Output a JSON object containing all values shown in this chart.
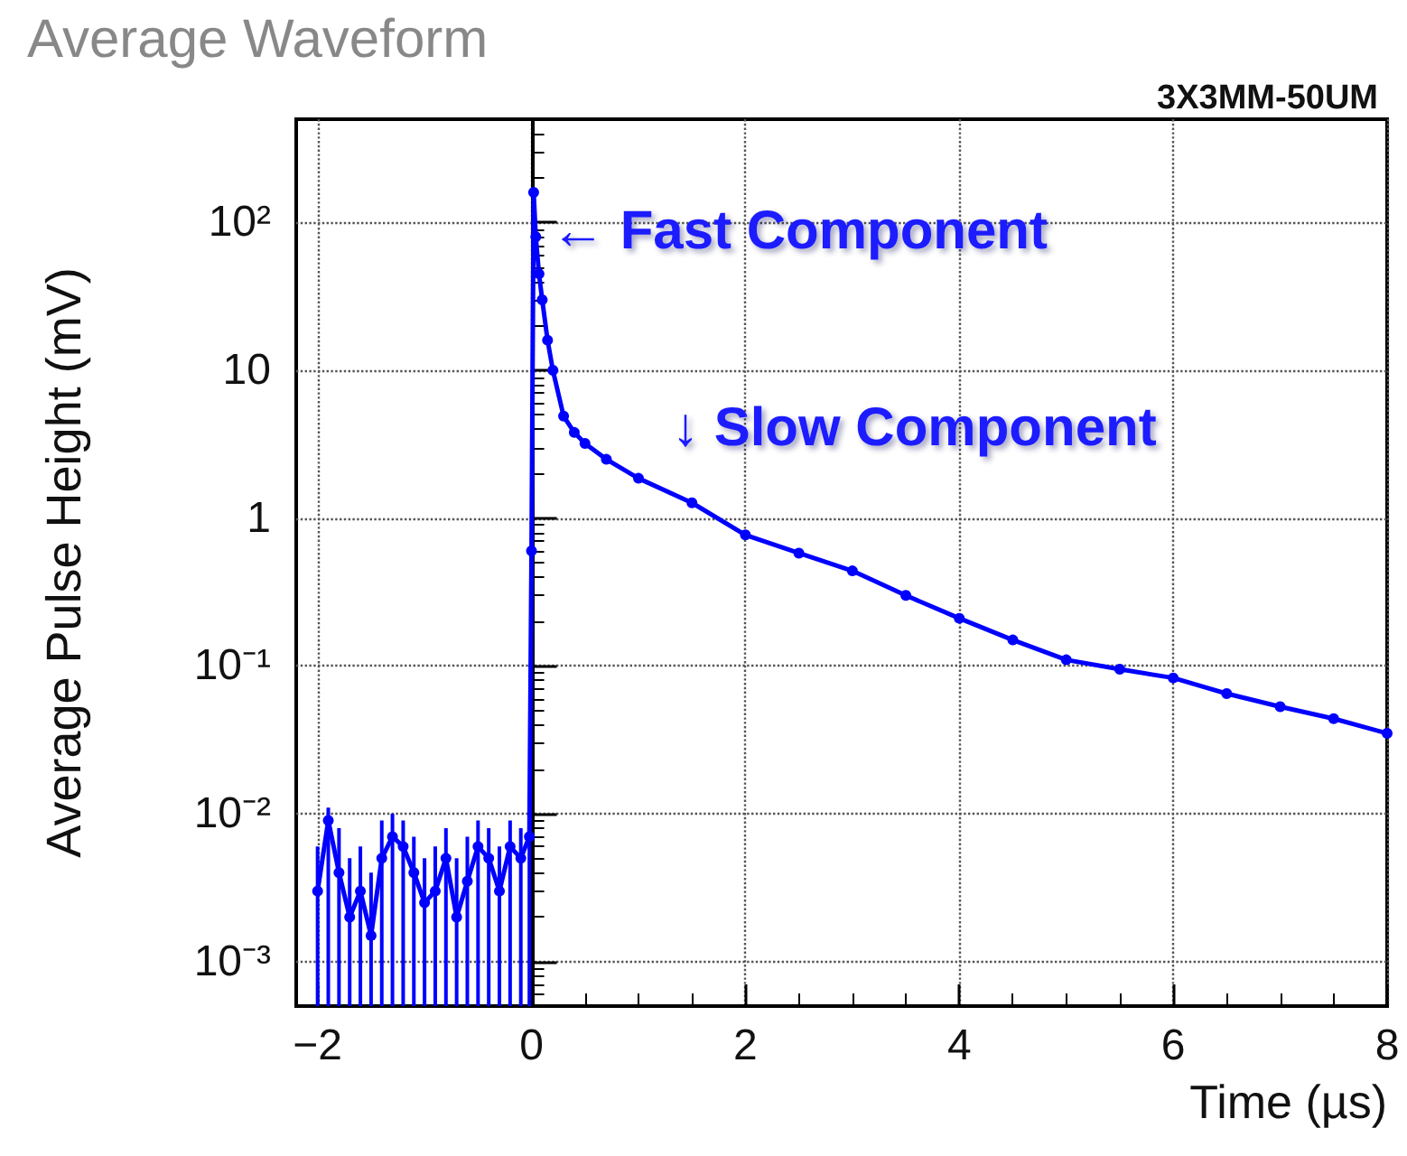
{
  "chart_data": {
    "type": "line",
    "title": "Average Waveform",
    "subtitle": "3X3MM-50UM",
    "xlabel": "Time (µs)",
    "ylabel": "Average Pulse Height (mV)",
    "x": [
      -2.0,
      -1.9,
      -1.8,
      -1.7,
      -1.6,
      -1.5,
      -1.4,
      -1.3,
      -1.2,
      -1.1,
      -1.0,
      -0.9,
      -0.8,
      -0.7,
      -0.6,
      -0.5,
      -0.4,
      -0.3,
      -0.2,
      -0.1,
      -0.02,
      0.0,
      0.02,
      0.04,
      0.07,
      0.1,
      0.15,
      0.2,
      0.3,
      0.4,
      0.5,
      0.7,
      1.0,
      1.5,
      2.0,
      2.5,
      3.0,
      3.5,
      4.0,
      4.5,
      5.0,
      5.5,
      6.0,
      6.5,
      7.0,
      7.5,
      8.0
    ],
    "series": [
      {
        "color": "#0000ff",
        "values": [
          0.003,
          0.009,
          0.004,
          0.002,
          0.003,
          0.0015,
          0.005,
          0.007,
          0.006,
          0.004,
          0.0025,
          0.003,
          0.005,
          0.002,
          0.0035,
          0.006,
          0.005,
          0.003,
          0.006,
          0.005,
          0.007,
          0.6,
          160,
          80,
          45,
          30,
          16,
          10,
          4.9,
          3.8,
          3.2,
          2.5,
          1.86,
          1.27,
          0.77,
          0.58,
          0.44,
          0.3,
          0.21,
          0.15,
          0.11,
          0.095,
          0.083,
          0.065,
          0.053,
          0.044,
          0.035
        ],
        "errors": [
          [
            0.0005,
            0.006
          ],
          [
            0.0005,
            0.011
          ],
          [
            0.0005,
            0.008
          ],
          [
            0.0005,
            0.005
          ],
          [
            0.0005,
            0.006
          ],
          [
            0.0005,
            0.004
          ],
          [
            0.0005,
            0.009
          ],
          [
            0.0005,
            0.01
          ],
          [
            0.0005,
            0.009
          ],
          [
            0.0005,
            0.007
          ],
          [
            0.0005,
            0.005
          ],
          [
            0.0005,
            0.006
          ],
          [
            0.0005,
            0.008
          ],
          [
            0.0005,
            0.005
          ],
          [
            0.0005,
            0.007
          ],
          [
            0.0005,
            0.009
          ],
          [
            0.0005,
            0.008
          ],
          [
            0.0005,
            0.006
          ],
          [
            0.0005,
            0.009
          ],
          [
            0.0005,
            0.008
          ],
          [
            0.0005,
            0.009
          ],
          null,
          null,
          null,
          null,
          null,
          null,
          null,
          null,
          null,
          null,
          null,
          null,
          null,
          null,
          null,
          null,
          null,
          null,
          null,
          null,
          null,
          null,
          null,
          null,
          null,
          null
        ]
      }
    ],
    "xlim": [
      -2.2,
      8.0
    ],
    "xticks": [
      -2,
      0,
      2,
      4,
      6,
      8
    ],
    "log": "y",
    "ylim": [
      0.0005,
      500
    ],
    "yticks": [
      {
        "value": 0.001,
        "label": "10⁻³"
      },
      {
        "value": 0.01,
        "label": "10⁻²"
      },
      {
        "value": 0.1,
        "label": "10⁻¹"
      },
      1,
      10,
      {
        "value": 100,
        "label": "10²"
      }
    ],
    "grid": true,
    "marker": "circle",
    "line_style": "solid",
    "annotations": [
      "← Fast Component",
      "↓ Slow Component"
    ]
  }
}
